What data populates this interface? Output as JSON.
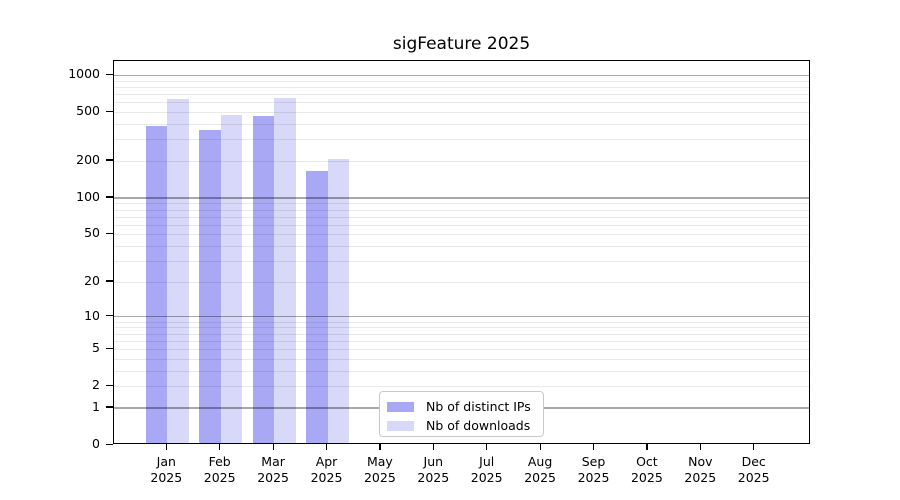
{
  "title": "sigFeature 2025",
  "chart_data": {
    "type": "bar",
    "title": "sigFeature 2025",
    "categories": [
      "Jan",
      "Feb",
      "Mar",
      "Apr",
      "May",
      "Jun",
      "Jul",
      "Aug",
      "Sep",
      "Oct",
      "Nov",
      "Dec"
    ],
    "category_year": "2025",
    "series": [
      {
        "name": "Nb of distinct IPs",
        "color": "#a8a8f4",
        "values": [
          370,
          345,
          445,
          160,
          null,
          null,
          null,
          null,
          null,
          null,
          null,
          null
        ]
      },
      {
        "name": "Nb of downloads",
        "color": "#d8d8f8",
        "values": [
          615,
          455,
          630,
          200,
          null,
          null,
          null,
          null,
          null,
          null,
          null,
          null
        ]
      }
    ],
    "y_scale": "log1p",
    "y_ticks": [
      0,
      1,
      2,
      5,
      10,
      20,
      50,
      100,
      200,
      500,
      1000
    ],
    "y_minor_gridlines": [
      2,
      3,
      4,
      5,
      6,
      7,
      8,
      9,
      20,
      30,
      40,
      50,
      60,
      70,
      80,
      90,
      200,
      300,
      400,
      500,
      600,
      700,
      800,
      900
    ],
    "y_major_gridlines": [
      1,
      10,
      100,
      1000
    ],
    "ylim": [
      0,
      1300
    ],
    "grid": "on",
    "legend_position": "bottom-center-inside"
  },
  "legend": {
    "items": [
      {
        "label": "Nb of distinct IPs",
        "color": "#a8a8f4"
      },
      {
        "label": "Nb of downloads",
        "color": "#d8d8f8"
      }
    ]
  },
  "colors": {
    "background": "#ffffff",
    "axis": "#000000",
    "bar_ips": "#a8a8f4",
    "bar_downloads": "#d8d8f8"
  }
}
